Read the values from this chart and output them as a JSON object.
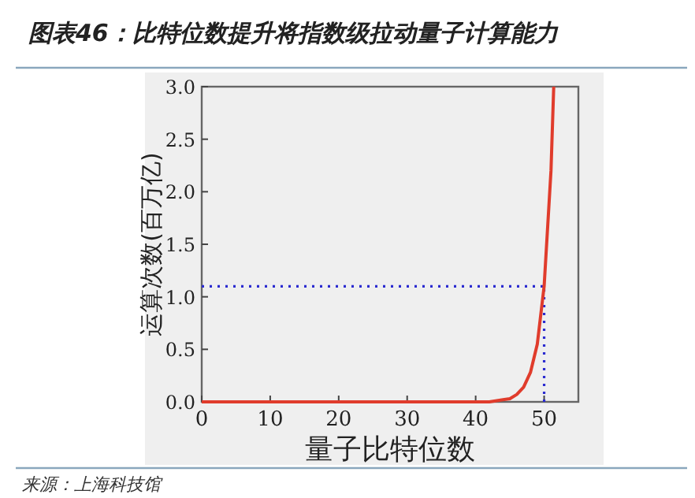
{
  "chart_data": {
    "type": "line",
    "title": "图表46：比特位数提升将指数级拉动量子计算能力",
    "xlabel": "量子比特位数",
    "ylabel": "运算次数(百万亿)",
    "annotations": [
      "来源：上海科技馆"
    ],
    "series": [
      {
        "color": "#e03c2c",
        "x": [
          0,
          10,
          20,
          30,
          40,
          42,
          44,
          45,
          46,
          47,
          48,
          49,
          50,
          51,
          51.4
        ],
        "values": [
          0,
          0,
          0,
          0,
          0,
          0,
          0.02,
          0.03,
          0.07,
          0.14,
          0.28,
          0.55,
          1.1,
          2.2,
          3.0
        ]
      }
    ],
    "xlim": [
      0,
      55
    ],
    "xticks": [
      0,
      10,
      20,
      30,
      40,
      50
    ],
    "ylim": [
      0,
      3.0
    ],
    "yticks": [
      {
        "value": 0,
        "label": "0.0"
      },
      {
        "value": 0.5,
        "label": "0.5"
      },
      {
        "value": 1,
        "label": "1.0"
      },
      {
        "value": 1.5,
        "label": "1.5"
      },
      {
        "value": 2,
        "label": "2.0"
      },
      {
        "value": 2.5,
        "label": "2.5"
      },
      {
        "value": 3,
        "label": "3.0"
      }
    ],
    "ref_lines": [
      {
        "axis": "y",
        "value": 1.1,
        "color": "#2b2bd0",
        "line_style": "dotted"
      },
      {
        "axis": "x",
        "value": 50,
        "color": "#2b2bd0",
        "line_style": "dotted"
      }
    ],
    "grid": false,
    "marker": "none",
    "line_style": "solid"
  }
}
